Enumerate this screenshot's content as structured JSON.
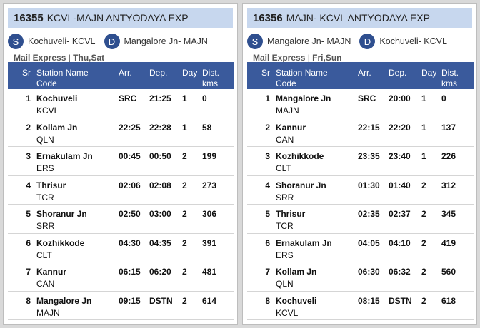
{
  "panels": [
    {
      "train_number": "16355",
      "train_name": "KCVL-MAJN ANTYODAYA EXP",
      "source": {
        "badge": "S",
        "label": "Kochuveli- KCVL"
      },
      "destination": {
        "badge": "D",
        "label": "Mangalore Jn- MAJN"
      },
      "service_type": "Mail Express",
      "run_days": "Thu,Sat",
      "headers": {
        "sr": "Sr",
        "station_name": "Station Name",
        "code": "Code",
        "arr": "Arr.",
        "dep": "Dep.",
        "day": "Day",
        "dist": "Dist.",
        "dist_unit": "kms"
      },
      "rows": [
        {
          "sr": "1",
          "name": "Kochuveli",
          "code": "KCVL",
          "arr": "SRC",
          "dep": "21:25",
          "day": "1",
          "dist": "0"
        },
        {
          "sr": "2",
          "name": "Kollam Jn",
          "code": "QLN",
          "arr": "22:25",
          "dep": "22:28",
          "day": "1",
          "dist": "58"
        },
        {
          "sr": "3",
          "name": "Ernakulam Jn",
          "code": "ERS",
          "arr": "00:45",
          "dep": "00:50",
          "day": "2",
          "dist": "199"
        },
        {
          "sr": "4",
          "name": "Thrisur",
          "code": "TCR",
          "arr": "02:06",
          "dep": "02:08",
          "day": "2",
          "dist": "273"
        },
        {
          "sr": "5",
          "name": "Shoranur Jn",
          "code": "SRR",
          "arr": "02:50",
          "dep": "03:00",
          "day": "2",
          "dist": "306"
        },
        {
          "sr": "6",
          "name": "Kozhikkode",
          "code": "CLT",
          "arr": "04:30",
          "dep": "04:35",
          "day": "2",
          "dist": "391"
        },
        {
          "sr": "7",
          "name": "Kannur",
          "code": "CAN",
          "arr": "06:15",
          "dep": "06:20",
          "day": "2",
          "dist": "481"
        },
        {
          "sr": "8",
          "name": "Mangalore Jn",
          "code": "MAJN",
          "arr": "09:15",
          "dep": "DSTN",
          "day": "2",
          "dist": "614"
        }
      ]
    },
    {
      "train_number": "16356",
      "train_name": "MAJN- KCVL ANTYODAYA EXP",
      "source": {
        "badge": "S",
        "label": "Mangalore Jn- MAJN"
      },
      "destination": {
        "badge": "D",
        "label": "Kochuveli- KCVL"
      },
      "service_type": "Mail Express",
      "run_days": "Fri,Sun",
      "headers": {
        "sr": "Sr",
        "station_name": "Station Name",
        "code": "Code",
        "arr": "Arr.",
        "dep": "Dep.",
        "day": "Day",
        "dist": "Dist.",
        "dist_unit": "kms"
      },
      "rows": [
        {
          "sr": "1",
          "name": "Mangalore Jn",
          "code": "MAJN",
          "arr": "SRC",
          "dep": "20:00",
          "day": "1",
          "dist": "0"
        },
        {
          "sr": "2",
          "name": "Kannur",
          "code": "CAN",
          "arr": "22:15",
          "dep": "22:20",
          "day": "1",
          "dist": "137"
        },
        {
          "sr": "3",
          "name": "Kozhikkode",
          "code": "CLT",
          "arr": "23:35",
          "dep": "23:40",
          "day": "1",
          "dist": "226"
        },
        {
          "sr": "4",
          "name": "Shoranur Jn",
          "code": "SRR",
          "arr": "01:30",
          "dep": "01:40",
          "day": "2",
          "dist": "312"
        },
        {
          "sr": "5",
          "name": "Thrisur",
          "code": "TCR",
          "arr": "02:35",
          "dep": "02:37",
          "day": "2",
          "dist": "345"
        },
        {
          "sr": "6",
          "name": "Ernakulam Jn",
          "code": "ERS",
          "arr": "04:05",
          "dep": "04:10",
          "day": "2",
          "dist": "419"
        },
        {
          "sr": "7",
          "name": "Kollam Jn",
          "code": "QLN",
          "arr": "06:30",
          "dep": "06:32",
          "day": "2",
          "dist": "560"
        },
        {
          "sr": "8",
          "name": "Kochuveli",
          "code": "KCVL",
          "arr": "08:15",
          "dep": "DSTN",
          "day": "2",
          "dist": "618"
        }
      ]
    }
  ],
  "colors": {
    "header_bg": "#3a5a9c",
    "title_bg": "#c7d7ee",
    "badge_bg": "#2f4f8f"
  }
}
